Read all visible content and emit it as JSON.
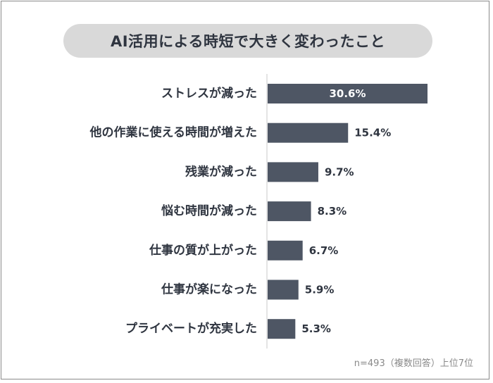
{
  "title": "AI活用による時短で大きく変わったこと",
  "footnote": "n=493（複数回答）上位7位",
  "colors": {
    "bar": "#4e5664",
    "axis": "#c8c8c8",
    "text": "#2f3540",
    "title_bg": "#d9d9d9"
  },
  "chart_data": {
    "type": "bar",
    "orientation": "horizontal",
    "title": "AI活用による時短で大きく変わったこと",
    "categories": [
      "ストレスが減った",
      "他の作業に使える時間が増えた",
      "残業が減った",
      "悩む時間が減った",
      "仕事の質が上がった",
      "仕事が楽になった",
      "プライベートが充実した"
    ],
    "values": [
      30.6,
      15.4,
      9.7,
      8.3,
      6.7,
      5.9,
      5.3
    ],
    "value_labels": [
      "30.6%",
      "15.4%",
      "9.7%",
      "8.3%",
      "6.7%",
      "5.9%",
      "5.3%"
    ],
    "xlim": [
      0,
      30.6
    ],
    "grid": false,
    "legend": "none"
  }
}
